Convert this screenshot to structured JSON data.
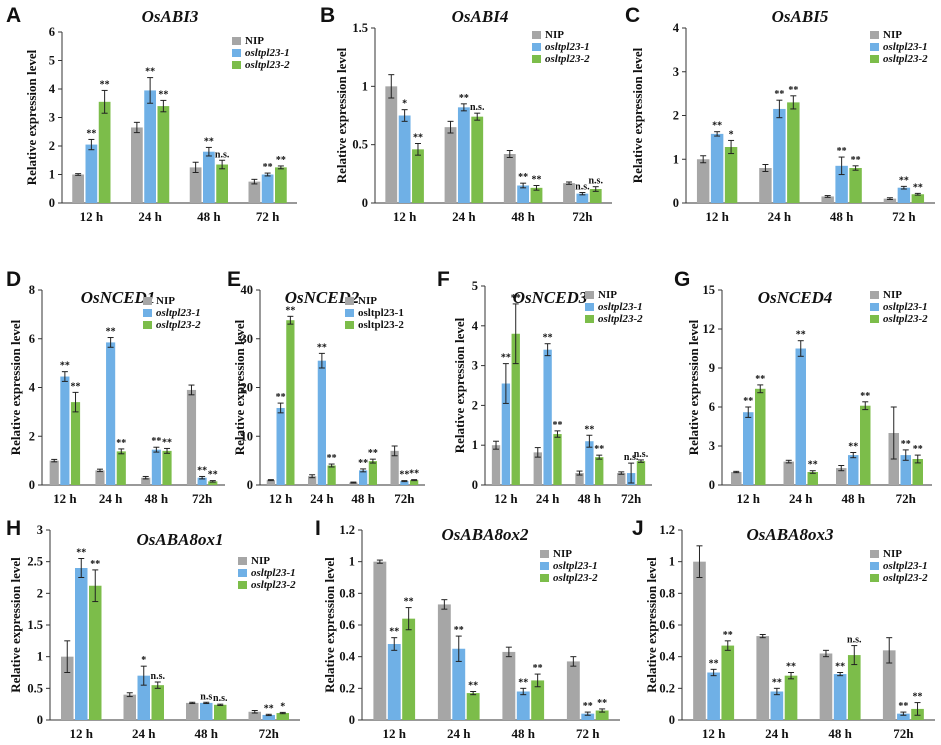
{
  "figure": {
    "description_free": true
  },
  "colors": {
    "NIP": "#a6a6a6",
    "s1": "#6fb0e6",
    "s2": "#7cbd4a",
    "axis": "#333333",
    "text": "#111111"
  },
  "chart_data": [
    {
      "id": "A",
      "panel_label": "A",
      "type": "bar",
      "title": "OsABI3",
      "ylabel": "Relative expression level",
      "ylim": [
        0,
        6
      ],
      "yticks": [
        "0",
        "1",
        "2",
        "3",
        "4",
        "5",
        "6"
      ],
      "categories": [
        "12 h",
        "24 h",
        "48 h",
        "72 h"
      ],
      "legend_italic": true,
      "series": [
        {
          "name": "NIP",
          "color_key": "NIP",
          "values": [
            1.0,
            2.65,
            1.25,
            0.75
          ],
          "errors": [
            0.03,
            0.18,
            0.18,
            0.08
          ],
          "sig": [
            "",
            "",
            "",
            ""
          ]
        },
        {
          "name": "osltpl23-1",
          "color_key": "s1",
          "values": [
            2.05,
            3.95,
            1.8,
            1.0
          ],
          "errors": [
            0.18,
            0.45,
            0.15,
            0.05
          ],
          "sig": [
            "**",
            "**",
            "**",
            "**"
          ]
        },
        {
          "name": "osltpl23-2",
          "color_key": "s2",
          "values": [
            3.55,
            3.4,
            1.35,
            1.25
          ],
          "errors": [
            0.4,
            0.2,
            0.15,
            0.05
          ],
          "sig": [
            "**",
            "**",
            "n.s.",
            "**"
          ]
        }
      ]
    },
    {
      "id": "B",
      "panel_label": "B",
      "type": "bar",
      "title": "OsABI4",
      "ylabel": "Relative expression level",
      "ylim": [
        0,
        1.5
      ],
      "yticks": [
        "0",
        "0.5",
        "1",
        "1.5"
      ],
      "categories": [
        "12 h",
        "24 h",
        "48 h",
        "72h"
      ],
      "legend_italic": true,
      "series": [
        {
          "name": "NIP",
          "color_key": "NIP",
          "values": [
            1.0,
            0.65,
            0.42,
            0.17
          ],
          "errors": [
            0.1,
            0.05,
            0.03,
            0.01
          ],
          "sig": [
            "",
            "",
            "",
            ""
          ]
        },
        {
          "name": "osltpl23-1",
          "color_key": "s1",
          "values": [
            0.75,
            0.82,
            0.15,
            0.08
          ],
          "errors": [
            0.05,
            0.03,
            0.02,
            0.01
          ],
          "sig": [
            "*",
            "**",
            "**",
            "n.s."
          ]
        },
        {
          "name": "osltpl23-2",
          "color_key": "s2",
          "values": [
            0.46,
            0.74,
            0.13,
            0.12
          ],
          "errors": [
            0.05,
            0.03,
            0.02,
            0.02
          ],
          "sig": [
            "**",
            "n.s.",
            "**",
            "n.s."
          ]
        }
      ]
    },
    {
      "id": "C",
      "panel_label": "C",
      "type": "bar",
      "title": "OsABI5",
      "ylabel": "Relative expression level",
      "ylim": [
        0,
        4
      ],
      "yticks": [
        "0",
        "1",
        "2",
        "3",
        "4"
      ],
      "categories": [
        "12 h",
        "24 h",
        "48 h",
        "72 h"
      ],
      "legend_italic": true,
      "series": [
        {
          "name": "NIP",
          "color_key": "NIP",
          "values": [
            1.0,
            0.8,
            0.15,
            0.1
          ],
          "errors": [
            0.08,
            0.08,
            0.02,
            0.02
          ],
          "sig": [
            "",
            "",
            "",
            ""
          ]
        },
        {
          "name": "osltpl23-1",
          "color_key": "s1",
          "values": [
            1.58,
            2.15,
            0.85,
            0.35
          ],
          "errors": [
            0.05,
            0.2,
            0.2,
            0.03
          ],
          "sig": [
            "**",
            "**",
            "**",
            "**"
          ]
        },
        {
          "name": "osltpl23-2",
          "color_key": "s2",
          "values": [
            1.28,
            2.3,
            0.8,
            0.2
          ],
          "errors": [
            0.15,
            0.15,
            0.05,
            0.02
          ],
          "sig": [
            "*",
            "**",
            "**",
            "**"
          ]
        }
      ]
    },
    {
      "id": "D",
      "panel_label": "D",
      "type": "bar",
      "title": "OsNCED1",
      "ylabel": "Relative expression level",
      "ylim": [
        0,
        8
      ],
      "yticks": [
        "0",
        "2",
        "4",
        "6",
        "8"
      ],
      "categories": [
        "12 h",
        "24 h",
        "48 h",
        "72h"
      ],
      "legend_italic": true,
      "series": [
        {
          "name": "NIP",
          "color_key": "NIP",
          "values": [
            1.0,
            0.6,
            0.3,
            3.9
          ],
          "errors": [
            0.05,
            0.05,
            0.05,
            0.2
          ],
          "sig": [
            "",
            "",
            "",
            ""
          ]
        },
        {
          "name": "osltpl23-1",
          "color_key": "s1",
          "values": [
            4.45,
            5.85,
            1.45,
            0.3
          ],
          "errors": [
            0.2,
            0.2,
            0.1,
            0.05
          ],
          "sig": [
            "**",
            "**",
            "**",
            "**"
          ]
        },
        {
          "name": "osltpl23-2",
          "color_key": "s2",
          "values": [
            3.4,
            1.38,
            1.4,
            0.15
          ],
          "errors": [
            0.4,
            0.1,
            0.1,
            0.03
          ],
          "sig": [
            "**",
            "**",
            "**",
            "**"
          ]
        }
      ]
    },
    {
      "id": "E",
      "panel_label": "E",
      "type": "bar",
      "title": "OsNCED2",
      "ylabel": "Relative expression level",
      "ylim": [
        0,
        40
      ],
      "yticks": [
        "0",
        "10",
        "20",
        "30",
        "40"
      ],
      "categories": [
        "12 h",
        "24 h",
        "48 h",
        "72h"
      ],
      "legend_italic": false,
      "series": [
        {
          "name": "NIP",
          "color_key": "NIP",
          "values": [
            1.0,
            1.8,
            0.5,
            7.0
          ],
          "errors": [
            0.1,
            0.3,
            0.1,
            1.0
          ],
          "sig": [
            "",
            "",
            "",
            ""
          ]
        },
        {
          "name": "osltpl23-1",
          "color_key": "s1",
          "values": [
            15.8,
            25.5,
            3.0,
            0.8
          ],
          "errors": [
            1.0,
            1.5,
            0.3,
            0.1
          ],
          "sig": [
            "**",
            "**",
            "**",
            "**"
          ]
        },
        {
          "name": "osltpl23-2",
          "color_key": "s2",
          "values": [
            33.8,
            4.0,
            4.9,
            1.0
          ],
          "errors": [
            0.8,
            0.3,
            0.4,
            0.1
          ],
          "sig": [
            "**",
            "**",
            "**",
            "**"
          ]
        }
      ]
    },
    {
      "id": "F",
      "panel_label": "F",
      "type": "bar",
      "title": "OsNCED3",
      "ylabel": "Relative expression level",
      "ylim": [
        0,
        5
      ],
      "yticks": [
        "0",
        "1",
        "2",
        "3",
        "4",
        "5"
      ],
      "categories": [
        "12 h",
        "24 h",
        "48 h",
        "72h"
      ],
      "legend_italic": true,
      "series": [
        {
          "name": "NIP",
          "color_key": "NIP",
          "values": [
            1.0,
            0.82,
            0.3,
            0.3
          ],
          "errors": [
            0.1,
            0.12,
            0.05,
            0.03
          ],
          "sig": [
            "",
            "",
            "",
            ""
          ]
        },
        {
          "name": "osltpl23-1",
          "color_key": "s1",
          "values": [
            2.55,
            3.4,
            1.1,
            0.3
          ],
          "errors": [
            0.5,
            0.15,
            0.15,
            0.25
          ],
          "sig": [
            "**",
            "**",
            "**",
            "n.s."
          ]
        },
        {
          "name": "osltpl23-2",
          "color_key": "s2",
          "values": [
            3.8,
            1.28,
            0.7,
            0.6
          ],
          "errors": [
            0.75,
            0.08,
            0.05,
            0.03
          ],
          "sig": [
            "**",
            "**",
            "**",
            "n.s."
          ]
        }
      ]
    },
    {
      "id": "G",
      "panel_label": "G",
      "type": "bar",
      "title": "OsNCED4",
      "ylabel": "Relative expression level",
      "ylim": [
        0,
        15
      ],
      "yticks": [
        "0",
        "3",
        "6",
        "9",
        "12",
        "15"
      ],
      "categories": [
        "12 h",
        "24 h",
        "48 h",
        "72h"
      ],
      "legend_italic": true,
      "series": [
        {
          "name": "NIP",
          "color_key": "NIP",
          "values": [
            1.0,
            1.8,
            1.3,
            4.0
          ],
          "errors": [
            0.05,
            0.1,
            0.2,
            2.0
          ],
          "sig": [
            "",
            "",
            "",
            ""
          ]
        },
        {
          "name": "osltpl23-1",
          "color_key": "s1",
          "values": [
            5.6,
            10.5,
            2.3,
            2.3
          ],
          "errors": [
            0.4,
            0.6,
            0.2,
            0.4
          ],
          "sig": [
            "**",
            "**",
            "**",
            "**"
          ]
        },
        {
          "name": "osltpl23-2",
          "color_key": "s2",
          "values": [
            7.4,
            1.0,
            6.1,
            2.0
          ],
          "errors": [
            0.3,
            0.1,
            0.3,
            0.3
          ],
          "sig": [
            "**",
            "**",
            "**",
            "**"
          ]
        }
      ]
    },
    {
      "id": "H",
      "panel_label": "H",
      "type": "bar",
      "title": "OsABA8ox1",
      "ylabel": "Relative expression level",
      "ylim": [
        0,
        3
      ],
      "yticks": [
        "0",
        "0.5",
        "1",
        "1.5",
        "2",
        "2.5",
        "3"
      ],
      "categories": [
        "12 h",
        "24 h",
        "48 h",
        "72h"
      ],
      "legend_italic": true,
      "series": [
        {
          "name": "NIP",
          "color_key": "NIP",
          "values": [
            1.0,
            0.4,
            0.27,
            0.13
          ],
          "errors": [
            0.25,
            0.03,
            0.01,
            0.02
          ],
          "sig": [
            "",
            "",
            "",
            ""
          ]
        },
        {
          "name": "osltpl23-1",
          "color_key": "s1",
          "values": [
            2.4,
            0.7,
            0.27,
            0.08
          ],
          "errors": [
            0.15,
            0.15,
            0.01,
            0.01
          ],
          "sig": [
            "**",
            "*",
            "n.s",
            "**"
          ]
        },
        {
          "name": "osltpl23-2",
          "color_key": "s2",
          "values": [
            2.12,
            0.55,
            0.24,
            0.11
          ],
          "errors": [
            0.25,
            0.05,
            0.01,
            0.01
          ],
          "sig": [
            "**",
            "n.s.",
            "n.s.",
            "*"
          ]
        }
      ]
    },
    {
      "id": "I",
      "panel_label": "I",
      "type": "bar",
      "title": "OsABA8ox2",
      "ylabel": "Relative expression level",
      "ylim": [
        0,
        1.2
      ],
      "yticks": [
        "0",
        "0.2",
        "0.4",
        "0.6",
        "0.8",
        "1",
        "1.2"
      ],
      "categories": [
        "12 h",
        "24 h",
        "48 h",
        "72 h"
      ],
      "legend_italic": true,
      "series": [
        {
          "name": "NIP",
          "color_key": "NIP",
          "values": [
            1.0,
            0.73,
            0.43,
            0.37
          ],
          "errors": [
            0.01,
            0.03,
            0.03,
            0.03
          ],
          "sig": [
            "",
            "",
            "",
            ""
          ]
        },
        {
          "name": "osltpl23-1",
          "color_key": "s1",
          "values": [
            0.48,
            0.45,
            0.18,
            0.04
          ],
          "errors": [
            0.04,
            0.08,
            0.02,
            0.01
          ],
          "sig": [
            "**",
            "**",
            "**",
            "**"
          ]
        },
        {
          "name": "osltpl23-2",
          "color_key": "s2",
          "values": [
            0.64,
            0.17,
            0.25,
            0.06
          ],
          "errors": [
            0.07,
            0.01,
            0.04,
            0.01
          ],
          "sig": [
            "**",
            "**",
            "**",
            "**"
          ]
        }
      ]
    },
    {
      "id": "J",
      "panel_label": "J",
      "type": "bar",
      "title": "OsABA8ox3",
      "ylabel": "Relative expression level",
      "ylim": [
        0,
        1.2
      ],
      "yticks": [
        "0",
        "0.2",
        "0.4",
        "0.6",
        "0.8",
        "1",
        "1.2"
      ],
      "categories": [
        "12 h",
        "24 h",
        "48 h",
        "72h"
      ],
      "legend_italic": true,
      "series": [
        {
          "name": "NIP",
          "color_key": "NIP",
          "values": [
            1.0,
            0.53,
            0.42,
            0.44
          ],
          "errors": [
            0.1,
            0.01,
            0.02,
            0.08
          ],
          "sig": [
            "",
            "",
            "",
            ""
          ]
        },
        {
          "name": "osltpl23-1",
          "color_key": "s1",
          "values": [
            0.3,
            0.18,
            0.29,
            0.04
          ],
          "errors": [
            0.02,
            0.02,
            0.01,
            0.01
          ],
          "sig": [
            "**",
            "**",
            "**",
            "**"
          ]
        },
        {
          "name": "osltpl23-2",
          "color_key": "s2",
          "values": [
            0.47,
            0.28,
            0.41,
            0.07
          ],
          "errors": [
            0.03,
            0.02,
            0.06,
            0.04
          ],
          "sig": [
            "**",
            "**",
            "n.s.",
            "**"
          ]
        }
      ]
    }
  ]
}
